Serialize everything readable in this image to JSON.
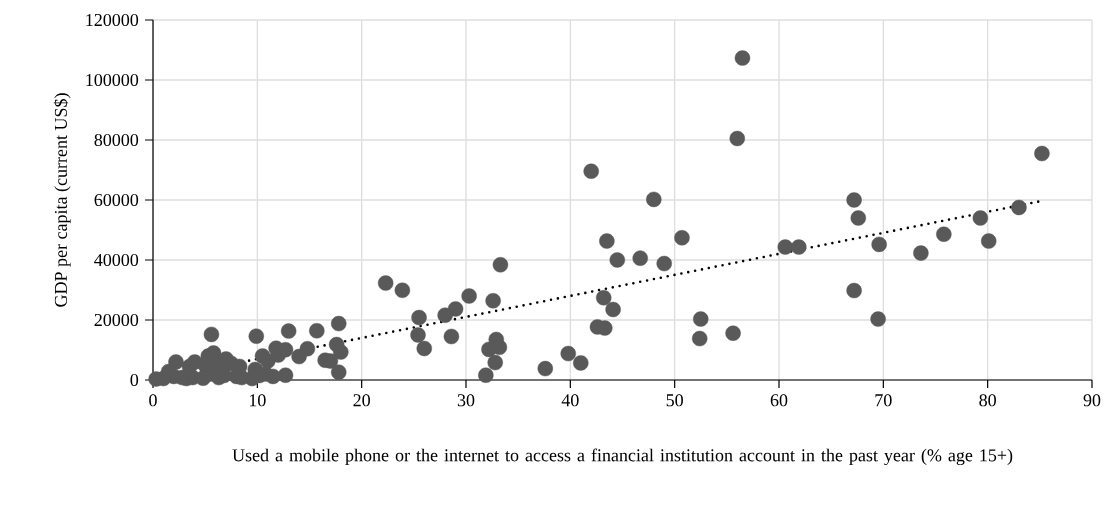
{
  "chart_data": {
    "type": "scatter",
    "xlabel": "Used a mobile phone or the internet to access a financial institution account in the past year (% age 15+)",
    "ylabel": "GDP per capita (current US$)",
    "xlim": [
      0,
      90
    ],
    "ylim": [
      0,
      120000
    ],
    "xticks": [
      0,
      10,
      20,
      30,
      40,
      50,
      60,
      70,
      80,
      90
    ],
    "yticks": [
      0,
      20000,
      40000,
      60000,
      80000,
      100000,
      120000
    ],
    "grid": true,
    "marker": "circle",
    "series": [
      {
        "color": "#595959",
        "x": [
          56.5,
          56,
          85.2,
          67.2,
          67.6,
          79.3,
          83,
          60.6,
          61.9,
          69.6,
          80.1,
          75.8,
          73.6,
          67.2,
          69.5,
          55.6,
          52.5,
          52.4,
          42,
          48,
          50.7,
          43.5,
          44.5,
          46.7,
          49,
          43.2,
          44.1,
          42.6,
          43.3,
          39.8,
          41,
          37.6,
          33.3,
          30.3,
          32.6,
          29,
          28,
          28.6,
          25.5,
          25.4,
          26,
          22.3,
          23.9,
          32.9,
          33.2,
          32.2,
          32.8,
          31.9,
          17.8,
          15.7,
          13,
          9.9,
          5.6,
          17.6,
          18,
          17.8,
          14.8,
          14,
          16.5,
          17,
          12.7,
          11.8,
          12,
          10.5,
          11,
          12.7,
          0.3,
          1.5,
          2,
          2.2,
          3.2,
          3.5,
          4,
          5,
          5.3,
          5.5,
          5.8,
          6,
          6.3,
          6.5,
          7,
          7.5,
          8,
          8.3,
          9.5,
          9.8,
          10.2,
          10.8,
          11.5,
          3.8,
          4.8,
          1,
          2.8,
          6.8,
          8.5
        ],
        "values": [
          107300,
          80500,
          75500,
          60000,
          54000,
          54000,
          57500,
          44300,
          44300,
          45200,
          46300,
          48600,
          42300,
          29800,
          20300,
          15600,
          20300,
          13800,
          69600,
          60200,
          47400,
          46300,
          40000,
          40600,
          38800,
          27400,
          23500,
          17700,
          17300,
          8800,
          5700,
          3800,
          38400,
          28000,
          26400,
          23700,
          21600,
          14500,
          20800,
          15000,
          10500,
          32300,
          29900,
          13500,
          10900,
          10200,
          5800,
          1600,
          18800,
          16400,
          16300,
          14600,
          15200,
          11800,
          9300,
          2600,
          10400,
          7800,
          6600,
          6300,
          10100,
          10600,
          8300,
          8000,
          6300,
          1600,
          300,
          2800,
          1200,
          6000,
          500,
          4500,
          6000,
          5000,
          8000,
          2000,
          9000,
          6000,
          800,
          4000,
          7000,
          5500,
          1200,
          4500,
          500,
          3500,
          1500,
          2000,
          1200,
          800,
          600,
          500,
          800,
          1500,
          800
        ]
      },
      {
        "type": "line",
        "color": "#000000",
        "line_style": "dotted",
        "marker": "none",
        "x": [
          0,
          85.2
        ],
        "values": [
          0,
          59700
        ]
      }
    ]
  }
}
